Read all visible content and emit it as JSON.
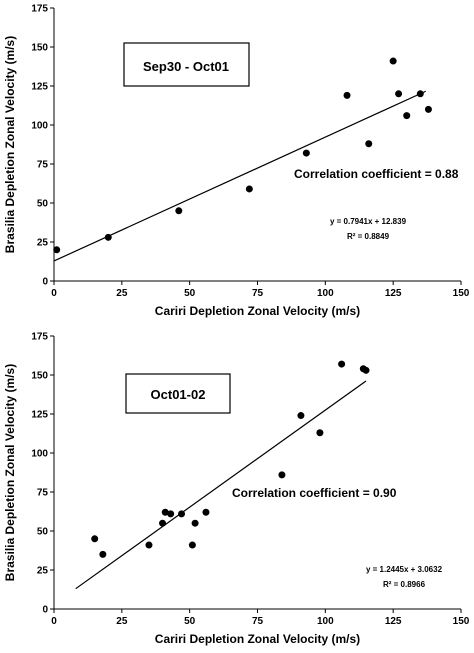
{
  "chart_data": [
    {
      "type": "scatter",
      "title": "Sep30 - Oct01",
      "xlabel": "Cariri Depletion Zonal Velocity (m/s)",
      "ylabel": "Brasilia Depletion Zonal Velocity (m/s)",
      "xlim": [
        0,
        150
      ],
      "ylim": [
        0,
        175
      ],
      "xticks": [
        0,
        25,
        50,
        75,
        100,
        125,
        150
      ],
      "yticks": [
        0,
        25,
        50,
        75,
        100,
        125,
        150,
        175
      ],
      "grid": false,
      "points": [
        {
          "x": 1,
          "y": 20
        },
        {
          "x": 20,
          "y": 28
        },
        {
          "x": 46,
          "y": 45
        },
        {
          "x": 72,
          "y": 59
        },
        {
          "x": 93,
          "y": 82
        },
        {
          "x": 108,
          "y": 119
        },
        {
          "x": 116,
          "y": 88
        },
        {
          "x": 125,
          "y": 141
        },
        {
          "x": 127,
          "y": 120
        },
        {
          "x": 130,
          "y": 106
        },
        {
          "x": 135,
          "y": 120
        },
        {
          "x": 138,
          "y": 110
        }
      ],
      "fit": {
        "slope": 0.7941,
        "intercept": 12.839,
        "x_range": [
          0,
          137
        ]
      },
      "correlation_text": "Correlation coefficient = 0.88",
      "equation_text": "y = 0.7941x + 12.839",
      "r2_text": "R² = 0.8849"
    },
    {
      "type": "scatter",
      "title": "Oct01-02",
      "xlabel": "Cariri Depletion Zonal Velocity (m/s)",
      "ylabel": "Brasilia Depletion Zonal Velocity (m/s)",
      "xlim": [
        0,
        150
      ],
      "ylim": [
        0,
        175
      ],
      "xticks": [
        0,
        25,
        50,
        75,
        100,
        125,
        150
      ],
      "yticks": [
        0,
        25,
        50,
        75,
        100,
        125,
        150,
        175
      ],
      "grid": false,
      "points": [
        {
          "x": 15,
          "y": 45
        },
        {
          "x": 18,
          "y": 35
        },
        {
          "x": 35,
          "y": 41
        },
        {
          "x": 40,
          "y": 55
        },
        {
          "x": 41,
          "y": 62
        },
        {
          "x": 43,
          "y": 61
        },
        {
          "x": 47,
          "y": 61
        },
        {
          "x": 51,
          "y": 41
        },
        {
          "x": 52,
          "y": 55
        },
        {
          "x": 56,
          "y": 62
        },
        {
          "x": 84,
          "y": 86
        },
        {
          "x": 91,
          "y": 124
        },
        {
          "x": 98,
          "y": 113
        },
        {
          "x": 106,
          "y": 157
        },
        {
          "x": 114,
          "y": 154
        },
        {
          "x": 115,
          "y": 153
        }
      ],
      "fit": {
        "slope": 1.2445,
        "intercept": 3.0632,
        "x_range": [
          8,
          115
        ]
      },
      "correlation_text": "Correlation coefficient = 0.90",
      "equation_text": "y = 1.2445x + 3.0632",
      "r2_text": "R² = 0.8966"
    }
  ]
}
